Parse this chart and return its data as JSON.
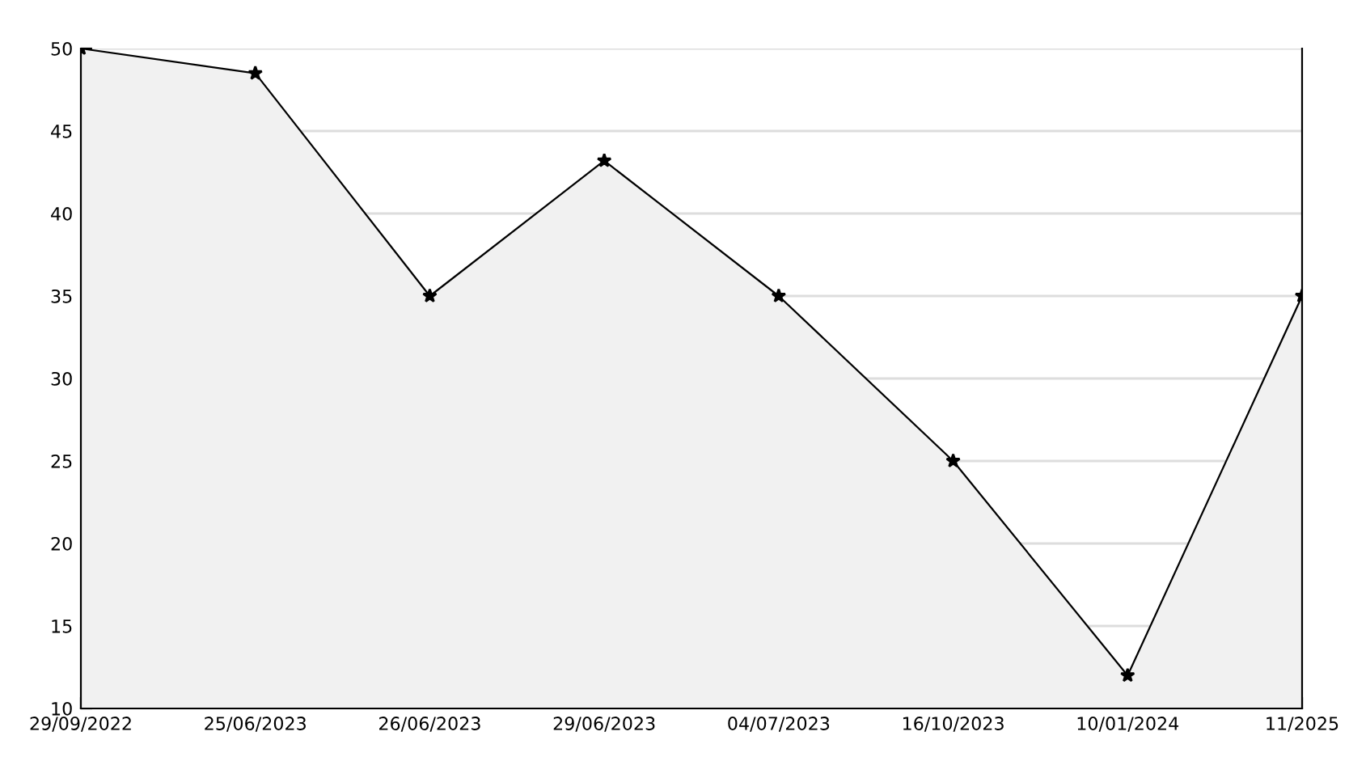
{
  "chart_data": {
    "type": "area",
    "categories": [
      "29/09/2022",
      "25/06/2023",
      "26/06/2023",
      "29/06/2023",
      "04/07/2023",
      "16/10/2023",
      "10/01/2024",
      "11/2025"
    ],
    "series": [
      {
        "color": "#f1f1f1",
        "values": [
          50,
          48.5,
          35,
          43.2,
          35,
          25,
          12,
          35
        ]
      }
    ],
    "ylim": [
      10,
      50
    ],
    "yticks": [
      10,
      15,
      20,
      25,
      30,
      35,
      40,
      45,
      50
    ],
    "grid": "y",
    "marker": "star",
    "line_style": "solid",
    "legend": false
  }
}
